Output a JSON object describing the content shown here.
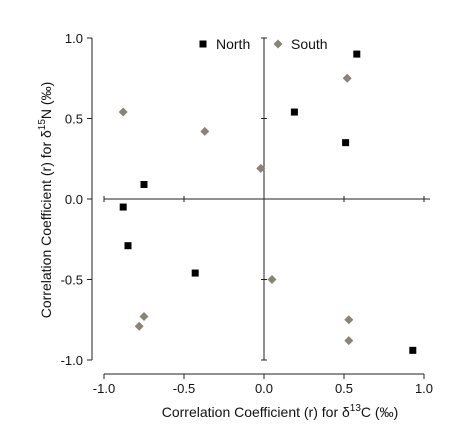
{
  "chart_data": {
    "type": "scatter",
    "xlim": [
      -1.0,
      1.0
    ],
    "ylim": [
      -1.0,
      1.0
    ],
    "xticks": [
      {
        "value": -1.0,
        "label": "-1.0"
      },
      {
        "value": -0.5,
        "label": "-0.5"
      },
      {
        "value": 0.0,
        "label": "0.0"
      },
      {
        "value": 0.5,
        "label": "0.5"
      },
      {
        "value": 1.0,
        "label": "1.0"
      }
    ],
    "yticks": [
      {
        "value": 1.0,
        "label": "1.0"
      },
      {
        "value": 0.5,
        "label": "0.5"
      },
      {
        "value": 0.0,
        "label": "0.0"
      },
      {
        "value": -0.5,
        "label": "-0.5"
      },
      {
        "value": -1.0,
        "label": "-1.0"
      }
    ],
    "xlabel": {
      "prefix": "Correlation Coefficient (r) for δ",
      "sup": "13",
      "suffix": "C (‰)"
    },
    "ylabel": {
      "prefix": "Correlation Coefficient (r) for δ",
      "sup": "15",
      "suffix": "N (‰)"
    },
    "grid": false,
    "legend_position": "top",
    "series": [
      {
        "name": "North",
        "color": "#000000",
        "marker": "square",
        "points": [
          {
            "x": 0.58,
            "y": 0.9
          },
          {
            "x": 0.19,
            "y": 0.54
          },
          {
            "x": 0.51,
            "y": 0.35
          },
          {
            "x": -0.75,
            "y": 0.09
          },
          {
            "x": -0.88,
            "y": -0.05
          },
          {
            "x": -0.85,
            "y": -0.29
          },
          {
            "x": -0.43,
            "y": -0.46
          },
          {
            "x": 0.93,
            "y": -0.94
          }
        ]
      },
      {
        "name": "South",
        "color": "#8a8478",
        "marker": "diamond",
        "points": [
          {
            "x": -0.88,
            "y": 0.54
          },
          {
            "x": -0.37,
            "y": 0.42
          },
          {
            "x": -0.02,
            "y": 0.19
          },
          {
            "x": 0.52,
            "y": 0.75
          },
          {
            "x": 0.05,
            "y": -0.5
          },
          {
            "x": -0.75,
            "y": -0.73
          },
          {
            "x": -0.78,
            "y": -0.79
          },
          {
            "x": 0.53,
            "y": -0.75
          },
          {
            "x": 0.53,
            "y": -0.88
          }
        ]
      }
    ]
  }
}
